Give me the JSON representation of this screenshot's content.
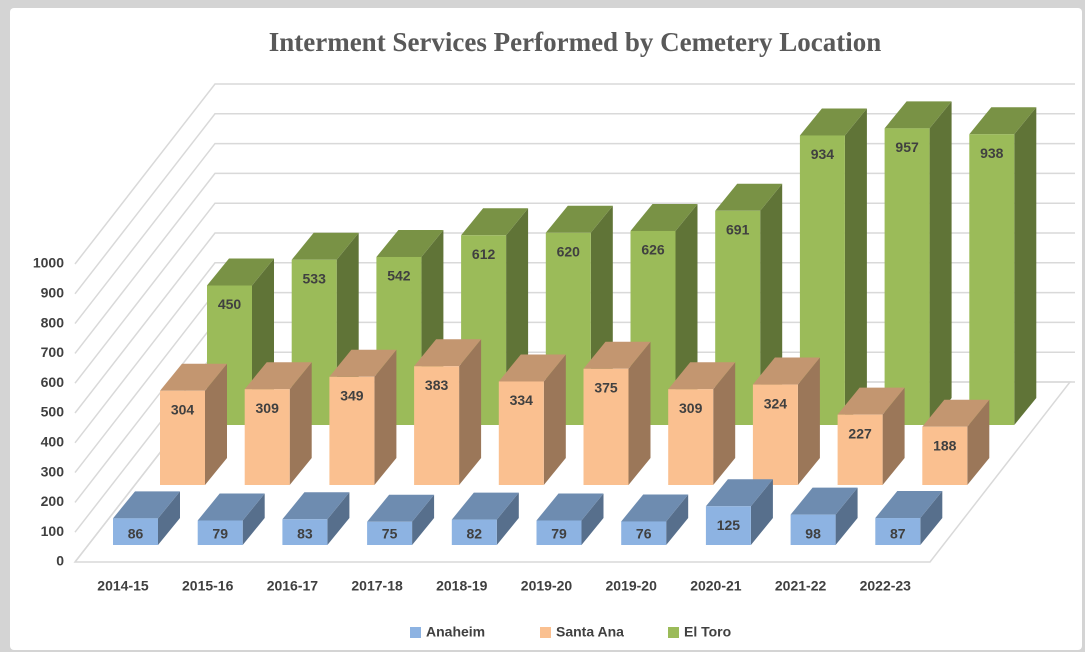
{
  "chart_data": {
    "type": "bar3d",
    "title": "Interment Services Performed by Cemetery Location",
    "categories": [
      "2014-15",
      "2015-16",
      "2016-17",
      "2017-18",
      "2018-19",
      "2019-20",
      "2019-20",
      "2020-21",
      "2021-22",
      "2022-23"
    ],
    "series": [
      {
        "name": "Anaheim",
        "color": "#8db3e2",
        "values": [
          86,
          79,
          83,
          75,
          82,
          79,
          76,
          125,
          98,
          87
        ]
      },
      {
        "name": "Santa Ana",
        "color": "#fac090",
        "values": [
          304,
          309,
          349,
          383,
          334,
          375,
          309,
          324,
          227,
          188
        ]
      },
      {
        "name": "El Toro",
        "color": "#9bbb59",
        "values": [
          450,
          533,
          542,
          612,
          620,
          626,
          691,
          934,
          957,
          938
        ]
      }
    ],
    "ylim": [
      0,
      1000
    ],
    "yticks": [
      0,
      100,
      200,
      300,
      400,
      500,
      600,
      700,
      800,
      900,
      1000
    ],
    "grid": true,
    "legend": "bottom"
  }
}
